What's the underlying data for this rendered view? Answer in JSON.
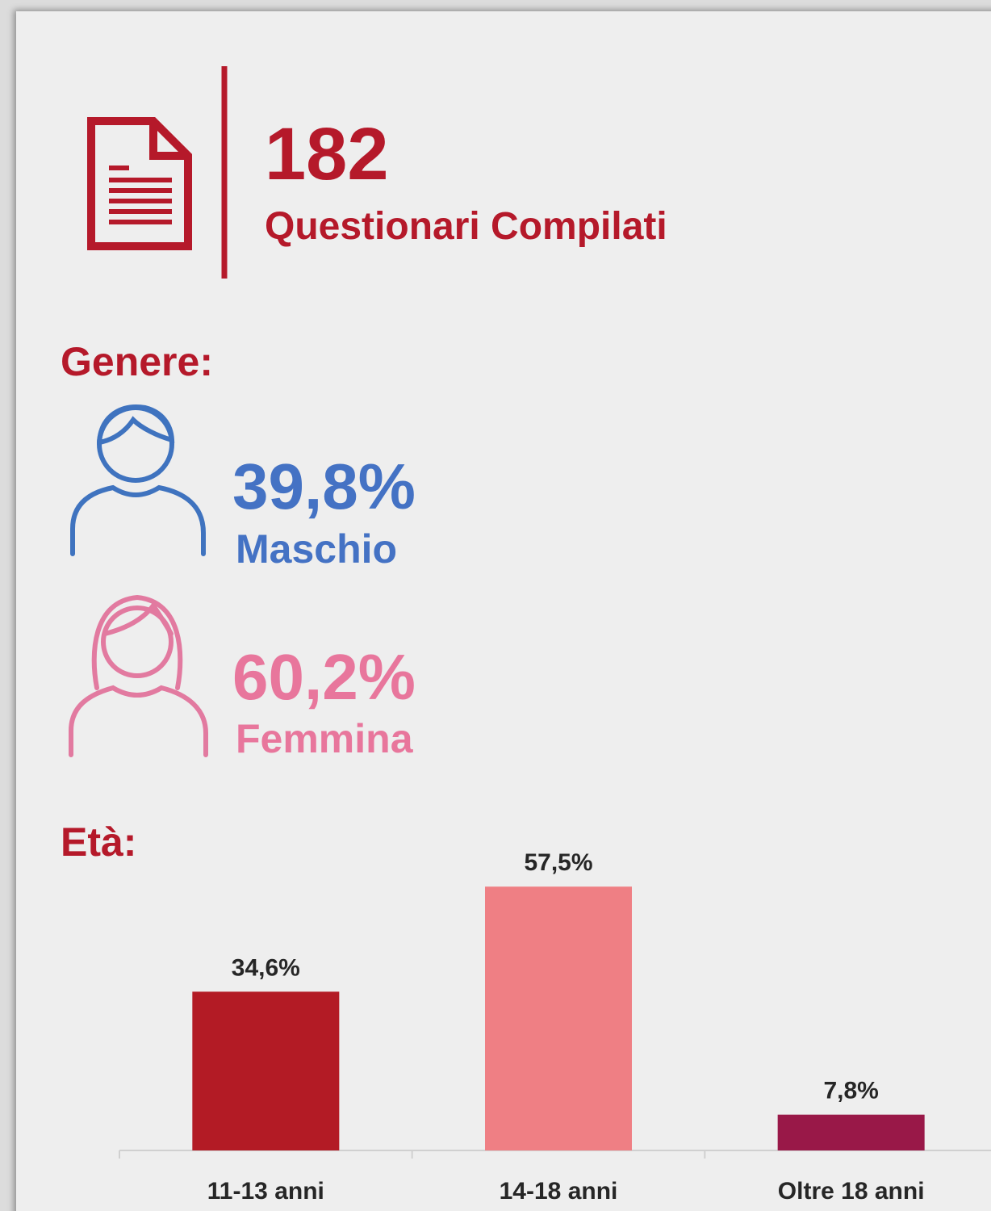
{
  "header": {
    "count": "182",
    "label": "Questionari Compilati"
  },
  "gender": {
    "title": "Genere:",
    "items": [
      {
        "percent": "39,8%",
        "label": "Maschio"
      },
      {
        "percent": "60,2%",
        "label": "Femmina"
      }
    ]
  },
  "chart_data": {
    "type": "bar",
    "title": "Età:",
    "categories": [
      "11-13 anni",
      "14-18 anni",
      "Oltre 18 anni"
    ],
    "values": [
      34.6,
      57.5,
      7.8
    ],
    "value_labels": [
      "34,6%",
      "57,5%",
      "7,8%"
    ],
    "colors": [
      "#b31b25",
      "#ef7f84",
      "#991848"
    ],
    "ylim": [
      0,
      60
    ]
  }
}
